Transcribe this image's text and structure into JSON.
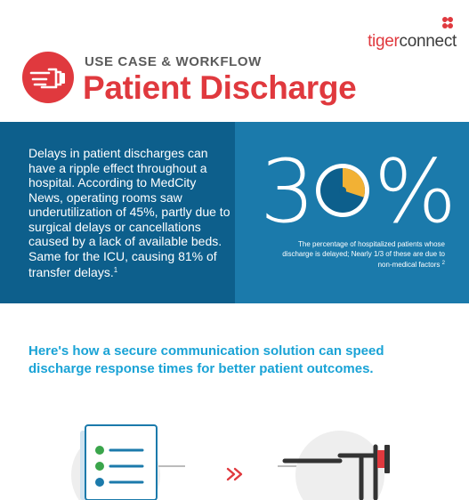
{
  "brand": {
    "logo_primary": "tiger",
    "logo_secondary": "connect",
    "logo_icon": "tigerconnect-mark-icon"
  },
  "header": {
    "eyebrow": "USE CASE & WORKFLOW",
    "title": "Patient Discharge",
    "icon": "pointing-hand-icon"
  },
  "intro": {
    "text": "Delays in patient discharges can have a ripple effect throughout a hospital. According to MedCity News, operating rooms saw underutilization of 45%, partly due to surgical delays or cancellations caused by a lack of available beds. Same for the ICU, causing 81% of transfer delays.",
    "footnote": "1"
  },
  "stat": {
    "value": "30%",
    "fraction_shown": 0.3,
    "caption": "The percentage of hospitalized patients whose discharge is delayed; Nearly 1/3 of these are due to non-medical factors",
    "footnote": "2"
  },
  "lead": {
    "text": "Here's how a secure communication solution can speed discharge response times for better patient outcomes."
  },
  "workflow": {
    "step1_icon": "checklist-document-icon",
    "connector_icon": "double-chevron-right-icon",
    "step2_icon": "pointing-hand-icon"
  },
  "colors": {
    "brand_red": "#e0393e",
    "band_dark": "#0d5f8c",
    "band_light": "#1b7aab",
    "accent_blue": "#1aa3d6",
    "accent_yellow": "#f2b134",
    "gray": "#5b5b5b"
  }
}
